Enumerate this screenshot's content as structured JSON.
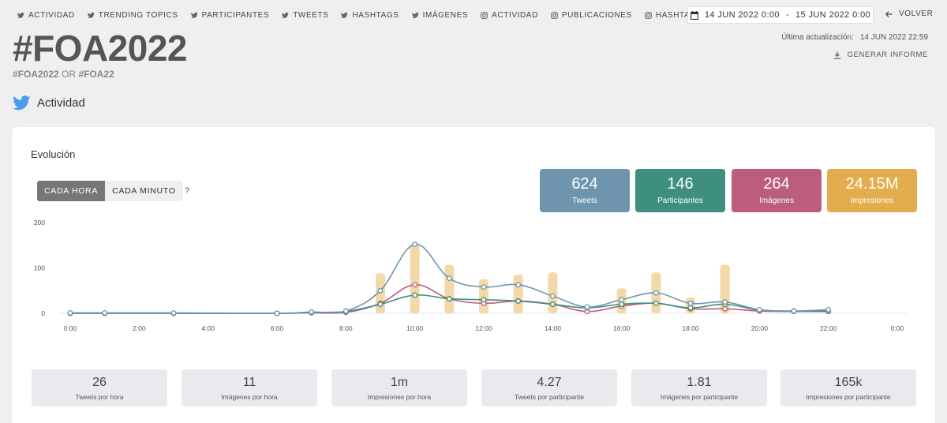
{
  "nav": [
    {
      "label": "ACTIVIDAD",
      "icon": "twitter-icon"
    },
    {
      "label": "TRENDING TOPICS",
      "icon": "twitter-icon"
    },
    {
      "label": "PARTICIPANTES",
      "icon": "twitter-icon"
    },
    {
      "label": "TWEETS",
      "icon": "twitter-icon"
    },
    {
      "label": "HASHTAGS",
      "icon": "twitter-icon"
    },
    {
      "label": "IMÁGENES",
      "icon": "twitter-icon"
    },
    {
      "label": "ACTIVIDAD",
      "icon": "instagram-icon"
    },
    {
      "label": "PUBLICACIONES",
      "icon": "instagram-icon"
    },
    {
      "label": "HASHTAGS",
      "icon": "instagram-icon"
    }
  ],
  "daterange": {
    "start": "14 JUN 2022 0:00",
    "sep": "-",
    "end": "15 JUN 2022 0:00"
  },
  "back_label": "VOLVER",
  "page_title": "#FOA2022",
  "subtitle": {
    "term1": "#FOA2022",
    "op": "OR",
    "term2": "#FOA22"
  },
  "last_update": {
    "label": "Última actualización:",
    "value": "14 JUN 2022 22:59"
  },
  "report_label": "GENERAR INFORME",
  "section_title": "Actividad",
  "card_title": "Evolución",
  "toggle": {
    "hour": "CADA HORA",
    "minute": "CADA MINUTO",
    "help": "?"
  },
  "stats": [
    {
      "value": "624",
      "label": "Tweets",
      "color": "#6f95ae"
    },
    {
      "value": "146",
      "label": "Participantes",
      "color": "#3f8f7e"
    },
    {
      "value": "264",
      "label": "Imágenes",
      "color": "#bb5d7c"
    },
    {
      "value": "24.15M",
      "label": "Impresiones",
      "color": "#e3ad4d"
    }
  ],
  "metrics": [
    {
      "value": "26",
      "label": "Tweets por hora"
    },
    {
      "value": "11",
      "label": "Imágenes por hora"
    },
    {
      "value": "1m",
      "label": "Impresiones por hora"
    },
    {
      "value": "4.27",
      "label": "Tweets por participante"
    },
    {
      "value": "1.81",
      "label": "Imágenes por participante"
    },
    {
      "value": "165k",
      "label": "Impresiones por participante"
    }
  ],
  "chart_data": {
    "type": "line",
    "x_ticks": [
      "0:00",
      "2:00",
      "4:00",
      "6:00",
      "8:00",
      "10:00",
      "12:00",
      "14:00",
      "16:00",
      "18:00",
      "20:00",
      "22:00",
      "0:00"
    ],
    "y_ticks": [
      0,
      100,
      200
    ],
    "ylim": [
      0,
      200
    ],
    "xlim": [
      0,
      24
    ],
    "grid": false,
    "bars": {
      "color": "#f3d9a8",
      "x": [
        9,
        10,
        11,
        12,
        13,
        14,
        16,
        17,
        18,
        19
      ],
      "values": [
        88,
        152,
        107,
        75,
        85,
        90,
        55,
        90,
        35,
        107
      ]
    },
    "series": [
      {
        "color": "#6f95ae",
        "x": [
          0,
          1,
          3,
          6,
          7,
          8,
          9,
          10,
          11,
          12,
          13,
          14,
          15,
          16,
          17,
          18,
          19,
          20,
          21,
          22
        ],
        "values": [
          1,
          1,
          1,
          0,
          3,
          5,
          50,
          152,
          77,
          58,
          63,
          38,
          14,
          30,
          45,
          22,
          25,
          8,
          5,
          8
        ]
      },
      {
        "color": "#bb5d7c",
        "x": [
          0,
          1,
          3,
          6,
          7,
          8,
          9,
          10,
          11,
          12,
          13,
          14,
          15,
          16,
          17,
          18,
          19,
          20,
          21,
          22
        ],
        "values": [
          0,
          0,
          0,
          0,
          1,
          2,
          22,
          63,
          32,
          22,
          27,
          20,
          4,
          16,
          22,
          10,
          10,
          5,
          4,
          4
        ]
      },
      {
        "color": "#3f8f7e",
        "x": [
          0,
          1,
          3,
          6,
          7,
          8,
          9,
          10,
          11,
          12,
          13,
          14,
          15,
          16,
          17,
          18,
          19,
          20,
          21,
          22
        ],
        "values": [
          0,
          0,
          0,
          0,
          2,
          4,
          20,
          40,
          32,
          30,
          27,
          20,
          12,
          20,
          22,
          12,
          20,
          7,
          5,
          5
        ]
      }
    ]
  }
}
